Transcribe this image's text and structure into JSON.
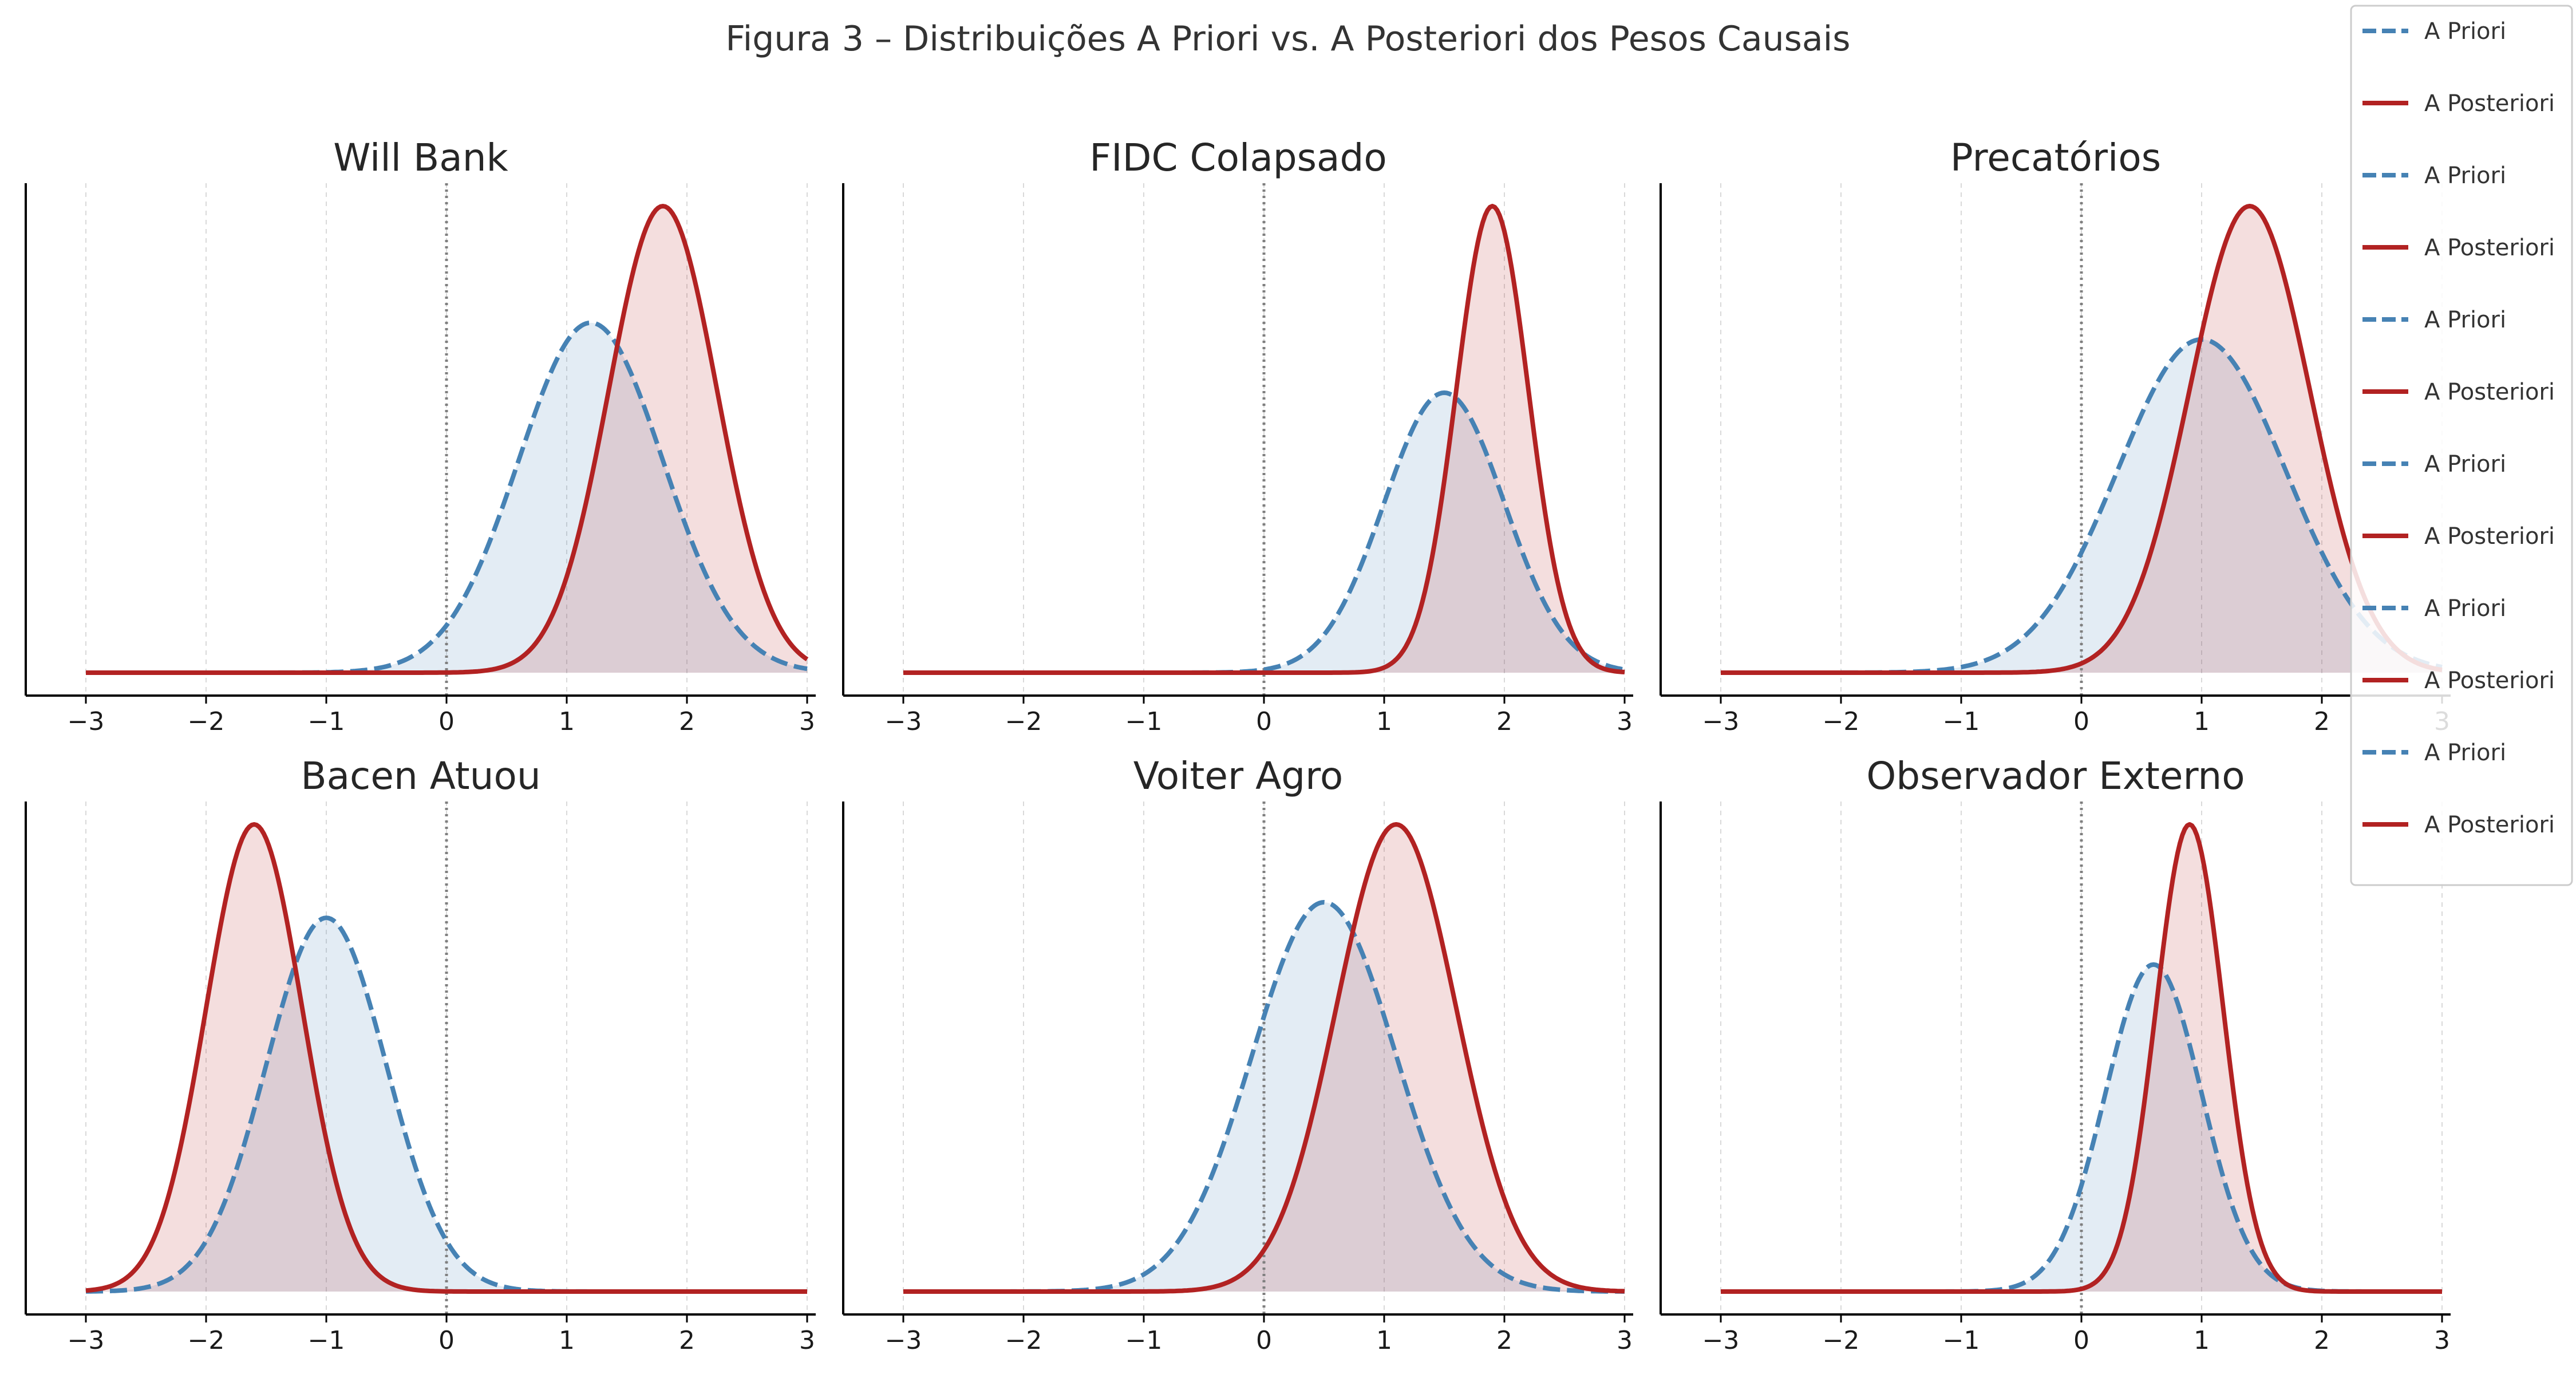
{
  "figure": {
    "title": "Figura 3 – Distribuições A Priori vs. A Posteriori dos Pesos Causais"
  },
  "colors": {
    "prior": "#4682b4",
    "posterior": "#b22222",
    "prior_fill": "#dce7f1",
    "posterior_fill": "#f2cfcf",
    "axis": "#000000",
    "grid": "#d9d9d9",
    "zero_line": "#808080"
  },
  "legend": {
    "placement": "top-right",
    "entries": [
      {
        "label": "A Priori",
        "style": "dashed",
        "color": "#4682b4"
      },
      {
        "label": "A Posteriori",
        "style": "solid",
        "color": "#b22222"
      },
      {
        "label": "A Priori",
        "style": "dashed",
        "color": "#4682b4"
      },
      {
        "label": "A Posteriori",
        "style": "solid",
        "color": "#b22222"
      },
      {
        "label": "A Priori",
        "style": "dashed",
        "color": "#4682b4"
      },
      {
        "label": "A Posteriori",
        "style": "solid",
        "color": "#b22222"
      },
      {
        "label": "A Priori",
        "style": "dashed",
        "color": "#4682b4"
      },
      {
        "label": "A Posteriori",
        "style": "solid",
        "color": "#b22222"
      },
      {
        "label": "A Priori",
        "style": "dashed",
        "color": "#4682b4"
      },
      {
        "label": "A Posteriori",
        "style": "solid",
        "color": "#b22222"
      },
      {
        "label": "A Priori",
        "style": "dashed",
        "color": "#4682b4"
      },
      {
        "label": "A Posteriori",
        "style": "solid",
        "color": "#b22222"
      }
    ]
  },
  "chart_data": [
    {
      "type": "area",
      "title": "Will Bank",
      "xlim": [
        -3,
        3
      ],
      "xticks": [
        -3,
        -2,
        -1,
        0,
        1,
        2,
        3
      ],
      "xtick_labels": [
        "−3",
        "−2",
        "−1",
        "0",
        "1",
        "2",
        "3"
      ],
      "grid": "vertical dashed",
      "reference_line_x": 0,
      "series": [
        {
          "name": "A Priori",
          "distribution": "normal",
          "mean": 1.2,
          "sd": 0.6,
          "line": "dashed"
        },
        {
          "name": "A Posteriori",
          "distribution": "normal",
          "mean": 1.8,
          "sd": 0.45,
          "line": "solid"
        }
      ]
    },
    {
      "type": "area",
      "title": "FIDC Colapsado",
      "xlim": [
        -3,
        3
      ],
      "xticks": [
        -3,
        -2,
        -1,
        0,
        1,
        2,
        3
      ],
      "xtick_labels": [
        "−3",
        "−2",
        "−1",
        "0",
        "1",
        "2",
        "3"
      ],
      "grid": "vertical dashed",
      "reference_line_x": 0,
      "series": [
        {
          "name": "A Priori",
          "distribution": "normal",
          "mean": 1.5,
          "sd": 0.5,
          "line": "dashed"
        },
        {
          "name": "A Posteriori",
          "distribution": "normal",
          "mean": 1.9,
          "sd": 0.3,
          "line": "solid"
        }
      ]
    },
    {
      "type": "area",
      "title": "Precatórios",
      "xlim": [
        -3,
        3
      ],
      "xticks": [
        -3,
        -2,
        -1,
        0,
        1,
        2,
        3
      ],
      "xtick_labels": [
        "−3",
        "−2",
        "−1",
        "0",
        "1",
        "2",
        "3"
      ],
      "grid": "vertical dashed",
      "reference_line_x": 0,
      "series": [
        {
          "name": "A Priori",
          "distribution": "normal",
          "mean": 1.0,
          "sd": 0.7,
          "line": "dashed"
        },
        {
          "name": "A Posteriori",
          "distribution": "normal",
          "mean": 1.4,
          "sd": 0.5,
          "line": "solid"
        }
      ]
    },
    {
      "type": "area",
      "title": "Bacen Atuou",
      "xlim": [
        -3,
        3
      ],
      "xticks": [
        -3,
        -2,
        -1,
        0,
        1,
        2,
        3
      ],
      "xtick_labels": [
        "−3",
        "−2",
        "−1",
        "0",
        "1",
        "2",
        "3"
      ],
      "grid": "vertical dashed",
      "reference_line_x": 0,
      "series": [
        {
          "name": "A Priori",
          "distribution": "normal",
          "mean": -1.0,
          "sd": 0.5,
          "line": "dashed"
        },
        {
          "name": "A Posteriori",
          "distribution": "normal",
          "mean": -1.6,
          "sd": 0.4,
          "line": "solid"
        }
      ]
    },
    {
      "type": "area",
      "title": "Voiter Agro",
      "xlim": [
        -3,
        3
      ],
      "xticks": [
        -3,
        -2,
        -1,
        0,
        1,
        2,
        3
      ],
      "xtick_labels": [
        "−3",
        "−2",
        "−1",
        "0",
        "1",
        "2",
        "3"
      ],
      "grid": "vertical dashed",
      "reference_line_x": 0,
      "series": [
        {
          "name": "A Priori",
          "distribution": "normal",
          "mean": 0.5,
          "sd": 0.6,
          "line": "dashed"
        },
        {
          "name": "A Posteriori",
          "distribution": "normal",
          "mean": 1.1,
          "sd": 0.5,
          "line": "solid"
        }
      ]
    },
    {
      "type": "area",
      "title": "Observador Externo",
      "xlim": [
        -3,
        3
      ],
      "xticks": [
        -3,
        -2,
        -1,
        0,
        1,
        2,
        3
      ],
      "xtick_labels": [
        "−3",
        "−2",
        "−1",
        "0",
        "1",
        "2",
        "3"
      ],
      "grid": "vertical dashed",
      "reference_line_x": 0,
      "series": [
        {
          "name": "A Priori",
          "distribution": "normal",
          "mean": 0.6,
          "sd": 0.4,
          "line": "dashed"
        },
        {
          "name": "A Posteriori",
          "distribution": "normal",
          "mean": 0.9,
          "sd": 0.28,
          "line": "solid"
        }
      ]
    }
  ]
}
